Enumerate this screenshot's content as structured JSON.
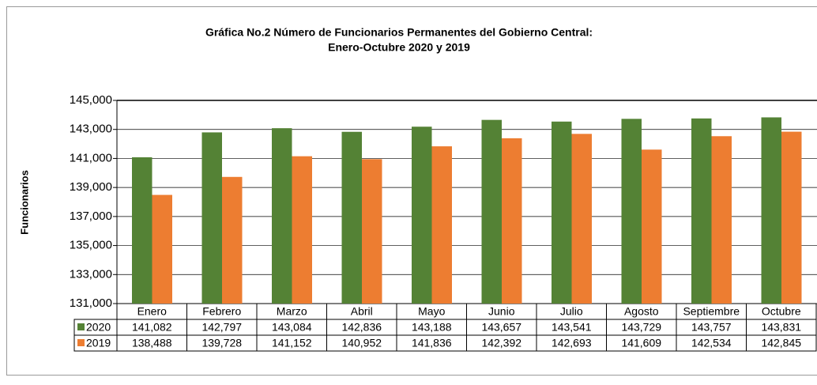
{
  "chart_data": {
    "type": "bar",
    "title": [
      "Gráfica No.2 Número de Funcionarios Permanentes del Gobierno Central:",
      "Enero-Octubre 2020 y 2019"
    ],
    "y_label": "Funcionarios",
    "categories": [
      "Enero",
      "Febrero",
      "Marzo",
      "Abril",
      "Mayo",
      "Junio",
      "Julio",
      "Agosto",
      "Septiembre",
      "Octubre"
    ],
    "series": [
      {
        "name": "2020",
        "color": "#548235",
        "values": [
          141082,
          142797,
          143084,
          142836,
          143188,
          143657,
          143541,
          143729,
          143757,
          143831
        ],
        "value_labels": [
          "141,082",
          "142,797",
          "143,084",
          "142,836",
          "143,188",
          "143,657",
          "143,541",
          "143,729",
          "143,757",
          "143,831"
        ]
      },
      {
        "name": "2019",
        "color": "#ed7d31",
        "values": [
          138488,
          139728,
          141152,
          140952,
          141836,
          142392,
          142693,
          141609,
          142534,
          142845
        ],
        "value_labels": [
          "138,488",
          "139,728",
          "141,152",
          "140,952",
          "141,836",
          "142,392",
          "142,693",
          "141,609",
          "142,534",
          "142,845"
        ]
      }
    ],
    "ylim": [
      131000,
      145000
    ],
    "yticks": [
      {
        "value": 131000,
        "label": "131,000"
      },
      {
        "value": 133000,
        "label": "133,000"
      },
      {
        "value": 135000,
        "label": "135,000"
      },
      {
        "value": 137000,
        "label": "137,000"
      },
      {
        "value": 139000,
        "label": "139,000"
      },
      {
        "value": 141000,
        "label": "141,000"
      },
      {
        "value": 143000,
        "label": "143,000"
      },
      {
        "value": 145000,
        "label": "145,000"
      }
    ],
    "grid": true
  }
}
